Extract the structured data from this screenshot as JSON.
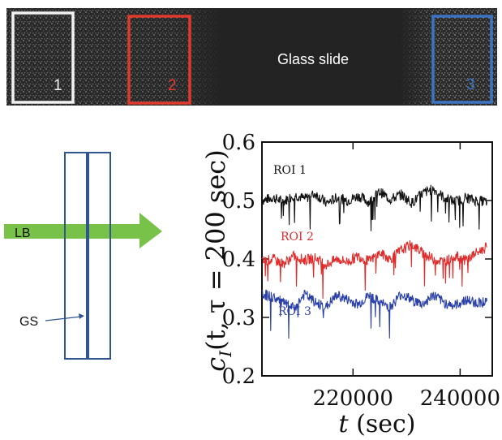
{
  "image_panel": {
    "caption": "Glass slide",
    "rois": [
      {
        "label": "1",
        "color": "#f2f2f2"
      },
      {
        "label": "2",
        "color": "#e03a2e"
      },
      {
        "label": "3",
        "color": "#3d74c2"
      }
    ]
  },
  "schematic": {
    "beam_label": "LB",
    "slide_label": "GS",
    "beam_color": "#78c24a",
    "slide_color": "#2f568f"
  },
  "chart_data": {
    "type": "line",
    "ylabel_parts": {
      "c": "c",
      "sub": "I",
      "rest": "(t, τ = 200 sec)"
    },
    "xlabel_parts": {
      "t": "t",
      "rest": " (sec)"
    },
    "xlim": [
      203000,
      246000
    ],
    "ylim": [
      0.2,
      0.6
    ],
    "x_ticks": [
      {
        "value": 220000,
        "label": "220000"
      },
      {
        "value": 240000,
        "label": "240000"
      }
    ],
    "y_ticks": [
      {
        "value": 0.2,
        "label": "0.2"
      },
      {
        "value": 0.3,
        "label": "0.3"
      },
      {
        "value": 0.4,
        "label": "0.4"
      },
      {
        "value": 0.5,
        "label": "0.5"
      },
      {
        "value": 0.6,
        "label": "0.6"
      }
    ],
    "series": [
      {
        "name": "ROI 1",
        "color": "#111111",
        "x": [
          203000,
          205000,
          207000,
          209000,
          211000,
          213000,
          215000,
          217000,
          219000,
          221000,
          223000,
          225000,
          227000,
          229000,
          231000,
          233000,
          235000,
          237000,
          239000,
          241000,
          243000,
          245000
        ],
        "y": [
          0.5,
          0.505,
          0.498,
          0.51,
          0.503,
          0.512,
          0.495,
          0.505,
          0.5,
          0.508,
          0.497,
          0.515,
          0.502,
          0.51,
          0.496,
          0.512,
          0.52,
          0.505,
          0.498,
          0.505,
          0.5,
          0.498
        ]
      },
      {
        "name": "ROI 2",
        "color": "#e02b2b",
        "x": [
          203000,
          205000,
          207000,
          209000,
          211000,
          213000,
          215000,
          217000,
          219000,
          221000,
          223000,
          225000,
          227000,
          229000,
          231000,
          233000,
          235000,
          237000,
          239000,
          241000,
          243000,
          245000
        ],
        "y": [
          0.395,
          0.4,
          0.392,
          0.405,
          0.398,
          0.402,
          0.39,
          0.4,
          0.395,
          0.405,
          0.396,
          0.41,
          0.4,
          0.415,
          0.425,
          0.41,
          0.4,
          0.395,
          0.405,
          0.398,
          0.41,
          0.42
        ]
      },
      {
        "name": "ROI 3",
        "color": "#2a3fa8",
        "x": [
          203000,
          205000,
          207000,
          209000,
          211000,
          213000,
          215000,
          217000,
          219000,
          221000,
          223000,
          225000,
          227000,
          229000,
          231000,
          233000,
          235000,
          237000,
          239000,
          241000,
          243000,
          245000
        ],
        "y": [
          0.34,
          0.335,
          0.325,
          0.315,
          0.34,
          0.325,
          0.318,
          0.338,
          0.33,
          0.322,
          0.338,
          0.325,
          0.318,
          0.34,
          0.33,
          0.322,
          0.338,
          0.325,
          0.32,
          0.33,
          0.325,
          0.328
        ]
      }
    ]
  }
}
